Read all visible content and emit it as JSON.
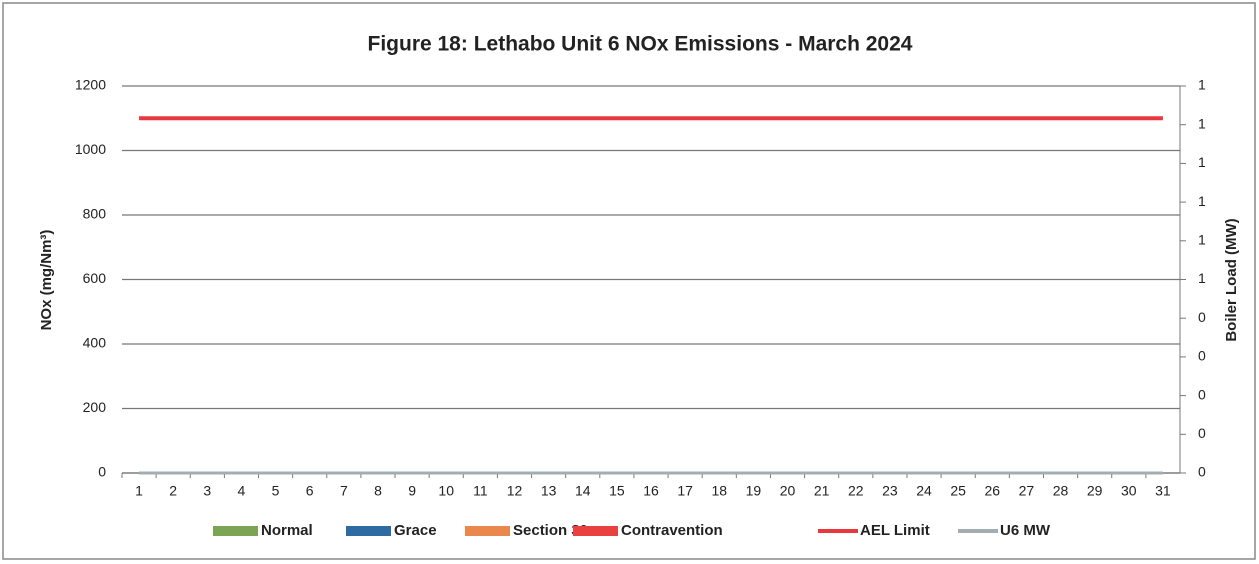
{
  "chart_data": {
    "type": "bar",
    "stacked": true,
    "title": "Figure 18: Lethabo Unit 6 NOx Emissions -  March 2024",
    "y_label": "NOx (mg/Nm³)",
    "y2_label": "Boiler Load (MW)",
    "categories": [
      "1",
      "2",
      "3",
      "4",
      "5",
      "6",
      "7",
      "8",
      "9",
      "10",
      "11",
      "12",
      "13",
      "14",
      "15",
      "16",
      "17",
      "18",
      "19",
      "20",
      "21",
      "22",
      "23",
      "24",
      "25",
      "26",
      "27",
      "28",
      "29",
      "30",
      "31"
    ],
    "series": [
      {
        "name": "Normal",
        "type": "bar",
        "color": "#7ba454",
        "values": [
          0,
          0,
          0,
          0,
          0,
          0,
          0,
          0,
          0,
          0,
          0,
          0,
          0,
          0,
          0,
          0,
          0,
          0,
          0,
          0,
          0,
          0,
          0,
          0,
          0,
          0,
          0,
          0,
          0,
          0,
          0
        ]
      },
      {
        "name": "Grace",
        "type": "bar",
        "color": "#2f6aa3",
        "values": [
          0,
          0,
          0,
          0,
          0,
          0,
          0,
          0,
          0,
          0,
          0,
          0,
          0,
          0,
          0,
          0,
          0,
          0,
          0,
          0,
          0,
          0,
          0,
          0,
          0,
          0,
          0,
          0,
          0,
          0,
          0
        ]
      },
      {
        "name": "Section 30",
        "type": "bar",
        "color": "#e9874d",
        "values": [
          0,
          0,
          0,
          0,
          0,
          0,
          0,
          0,
          0,
          0,
          0,
          0,
          0,
          0,
          0,
          0,
          0,
          0,
          0,
          0,
          0,
          0,
          0,
          0,
          0,
          0,
          0,
          0,
          0,
          0,
          0
        ]
      },
      {
        "name": "Contravention",
        "type": "bar",
        "color": "#e8413f",
        "values": [
          0,
          0,
          0,
          0,
          0,
          0,
          0,
          0,
          0,
          0,
          0,
          0,
          0,
          0,
          0,
          0,
          0,
          0,
          0,
          0,
          0,
          0,
          0,
          0,
          0,
          0,
          0,
          0,
          0,
          0,
          0
        ]
      },
      {
        "name": "AEL Limit",
        "type": "line",
        "color": "#e8383d",
        "values": [
          1100,
          1100,
          1100,
          1100,
          1100,
          1100,
          1100,
          1100,
          1100,
          1100,
          1100,
          1100,
          1100,
          1100,
          1100,
          1100,
          1100,
          1100,
          1100,
          1100,
          1100,
          1100,
          1100,
          1100,
          1100,
          1100,
          1100,
          1100,
          1100,
          1100,
          1100
        ]
      },
      {
        "name": "U6 MW",
        "type": "line",
        "axis": "y2",
        "color": "#a3adb3",
        "values": [
          0,
          0,
          0,
          0,
          0,
          0,
          0,
          0,
          0,
          0,
          0,
          0,
          0,
          0,
          0,
          0,
          0,
          0,
          0,
          0,
          0,
          0,
          0,
          0,
          0,
          0,
          0,
          0,
          0,
          0,
          0
        ]
      }
    ],
    "ylim": [
      0,
      1200
    ],
    "yticks": [
      0,
      200,
      400,
      600,
      800,
      1000,
      1200
    ],
    "y2lim": [
      0,
      1
    ],
    "y2ticks": [
      0,
      {
        "value": 0.1,
        "label": "0"
      },
      {
        "value": 0.2,
        "label": "0"
      },
      {
        "value": 0.3,
        "label": "0"
      },
      {
        "value": 0.4,
        "label": "0"
      },
      {
        "value": 0.5,
        "label": "1"
      },
      {
        "value": 0.6,
        "label": "1"
      },
      {
        "value": 0.7,
        "label": "1"
      },
      {
        "value": 0.8,
        "label": "1"
      },
      {
        "value": 0.9,
        "label": "1"
      },
      1
    ],
    "grid": true,
    "legend": "bottom"
  }
}
